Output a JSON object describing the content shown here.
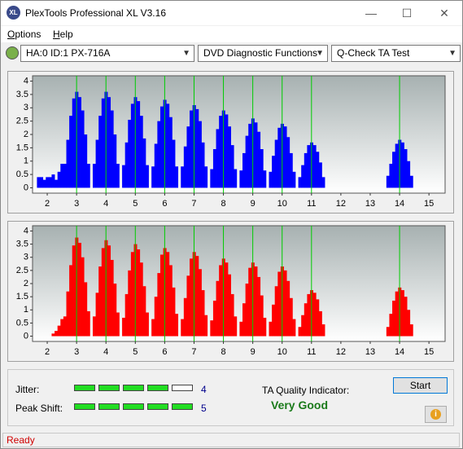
{
  "window": {
    "title": "PlexTools Professional XL V3.16"
  },
  "menu": [
    "Options",
    "Help"
  ],
  "toolbar": {
    "drive": "HA:0 ID:1  PX-716A",
    "function": "DVD Diagnostic Functions",
    "test": "Q-Check TA Test"
  },
  "chart_data": [
    {
      "type": "bar",
      "color": "#0000ff",
      "x": [
        1.7,
        1.8,
        1.9,
        2.0,
        2.1,
        2.2,
        2.3,
        2.4,
        2.5,
        2.6,
        2.7,
        2.8,
        2.9,
        3.0,
        3.1,
        3.2,
        3.3,
        3.4,
        3.6,
        3.7,
        3.8,
        3.9,
        4.0,
        4.1,
        4.2,
        4.3,
        4.4,
        4.6,
        4.7,
        4.8,
        4.9,
        5.0,
        5.1,
        5.2,
        5.3,
        5.4,
        5.6,
        5.7,
        5.8,
        5.9,
        6.0,
        6.1,
        6.2,
        6.3,
        6.4,
        6.6,
        6.7,
        6.8,
        6.9,
        7.0,
        7.1,
        7.2,
        7.3,
        7.4,
        7.6,
        7.7,
        7.8,
        7.9,
        8.0,
        8.1,
        8.2,
        8.3,
        8.4,
        8.6,
        8.7,
        8.8,
        8.9,
        9.0,
        9.1,
        9.2,
        9.3,
        9.4,
        9.6,
        9.7,
        9.8,
        9.9,
        10.0,
        10.1,
        10.2,
        10.3,
        10.4,
        10.6,
        10.7,
        10.8,
        10.9,
        11.0,
        11.1,
        11.2,
        11.3,
        11.4,
        13.6,
        13.7,
        13.8,
        13.9,
        14.0,
        14.1,
        14.2,
        14.3,
        14.4
      ],
      "values": [
        0.4,
        0.4,
        0.3,
        0.4,
        0.4,
        0.5,
        0.3,
        0.6,
        0.9,
        0.9,
        1.8,
        2.7,
        3.35,
        3.6,
        3.4,
        2.9,
        2,
        0.9,
        0.9,
        1.8,
        2.7,
        3.35,
        3.6,
        3.4,
        2.9,
        2,
        0.9,
        0.85,
        1.7,
        2.55,
        3.15,
        3.4,
        3.25,
        2.7,
        1.85,
        0.85,
        0.8,
        1.65,
        2.5,
        3.05,
        3.3,
        3.15,
        2.65,
        1.8,
        0.8,
        0.8,
        1.55,
        2.3,
        2.9,
        3.1,
        2.95,
        2.5,
        1.7,
        0.8,
        0.7,
        1.45,
        2.2,
        2.7,
        2.9,
        2.75,
        2.3,
        1.6,
        0.7,
        0.65,
        1.3,
        1.95,
        2.4,
        2.6,
        2.45,
        2.1,
        1.45,
        0.65,
        0.6,
        1.2,
        1.8,
        2.25,
        2.4,
        2.3,
        1.9,
        1.3,
        0.6,
        0.4,
        0.85,
        1.3,
        1.6,
        1.7,
        1.6,
        1.35,
        0.95,
        0.4,
        0.45,
        0.9,
        1.35,
        1.65,
        1.8,
        1.7,
        1.45,
        1,
        0.45
      ],
      "xlim": [
        1.5,
        15.55
      ],
      "ylim": [
        -0.2,
        4.2
      ],
      "xticks": [
        2,
        3,
        4,
        5,
        6,
        7,
        8,
        9,
        10,
        11,
        12,
        13,
        14,
        15
      ],
      "yticks": [
        0,
        0.5,
        1,
        1.5,
        2,
        2.5,
        3,
        3.5,
        4
      ],
      "markers": [
        3,
        4,
        5,
        6,
        7,
        8,
        9,
        10,
        11,
        14
      ],
      "marker_color": "#00cc00"
    },
    {
      "type": "bar",
      "color": "#ff0000",
      "x": [
        1.7,
        1.8,
        1.9,
        2.0,
        2.1,
        2.2,
        2.3,
        2.4,
        2.5,
        2.6,
        2.7,
        2.8,
        2.9,
        3.0,
        3.1,
        3.2,
        3.3,
        3.4,
        3.6,
        3.7,
        3.8,
        3.9,
        4.0,
        4.1,
        4.2,
        4.3,
        4.4,
        4.6,
        4.7,
        4.8,
        4.9,
        5.0,
        5.1,
        5.2,
        5.3,
        5.4,
        5.6,
        5.7,
        5.8,
        5.9,
        6.0,
        6.1,
        6.2,
        6.3,
        6.4,
        6.6,
        6.7,
        6.8,
        6.9,
        7.0,
        7.1,
        7.2,
        7.3,
        7.4,
        7.6,
        7.7,
        7.8,
        7.9,
        8.0,
        8.1,
        8.2,
        8.3,
        8.4,
        8.6,
        8.7,
        8.8,
        8.9,
        9.0,
        9.1,
        9.2,
        9.3,
        9.4,
        9.6,
        9.7,
        9.8,
        9.9,
        10.0,
        10.1,
        10.2,
        10.3,
        10.4,
        10.6,
        10.7,
        10.8,
        10.9,
        11.0,
        11.1,
        11.2,
        11.3,
        11.4,
        13.6,
        13.7,
        13.8,
        13.9,
        14.0,
        14.1,
        14.2,
        14.3,
        14.4
      ],
      "values": [
        0,
        0,
        0,
        0,
        0,
        0.1,
        0.2,
        0.4,
        0.65,
        0.75,
        1.7,
        2.7,
        3.45,
        3.75,
        3.55,
        3,
        2.05,
        0.95,
        0.75,
        1.65,
        2.65,
        3.35,
        3.65,
        3.45,
        2.9,
        2,
        0.9,
        0.7,
        1.6,
        2.5,
        3.2,
        3.5,
        3.3,
        2.8,
        1.9,
        0.9,
        0.65,
        1.5,
        2.4,
        3.1,
        3.35,
        3.2,
        2.7,
        1.85,
        0.85,
        0.65,
        1.45,
        2.3,
        2.95,
        3.2,
        3.05,
        2.55,
        1.75,
        0.8,
        0.6,
        1.35,
        2.1,
        2.7,
        2.95,
        2.8,
        2.35,
        1.6,
        0.75,
        0.55,
        1.25,
        2,
        2.6,
        2.8,
        2.65,
        2.25,
        1.55,
        0.7,
        0.55,
        1.2,
        1.9,
        2.45,
        2.65,
        2.5,
        2.1,
        1.45,
        0.65,
        0.35,
        0.8,
        1.25,
        1.6,
        1.75,
        1.65,
        1.4,
        0.95,
        0.45,
        0.35,
        0.85,
        1.35,
        1.7,
        1.85,
        1.75,
        1.5,
        1,
        0.45
      ],
      "xlim": [
        1.5,
        15.55
      ],
      "ylim": [
        -0.2,
        4.2
      ],
      "xticks": [
        2,
        3,
        4,
        5,
        6,
        7,
        8,
        9,
        10,
        11,
        12,
        13,
        14,
        15
      ],
      "yticks": [
        0,
        0.5,
        1,
        1.5,
        2,
        2.5,
        3,
        3.5,
        4
      ],
      "markers": [
        3,
        4,
        5,
        6,
        7,
        8,
        9,
        10,
        11,
        14
      ],
      "marker_color": "#00cc00"
    }
  ],
  "results": {
    "jitter_label": "Jitter:",
    "jitter": 4,
    "peak_shift_label": "Peak Shift:",
    "peak_shift": 5,
    "ta_label": "TA Quality Indicator:",
    "ta_value": "Very Good"
  },
  "buttons": {
    "start": "Start"
  },
  "status": "Ready"
}
